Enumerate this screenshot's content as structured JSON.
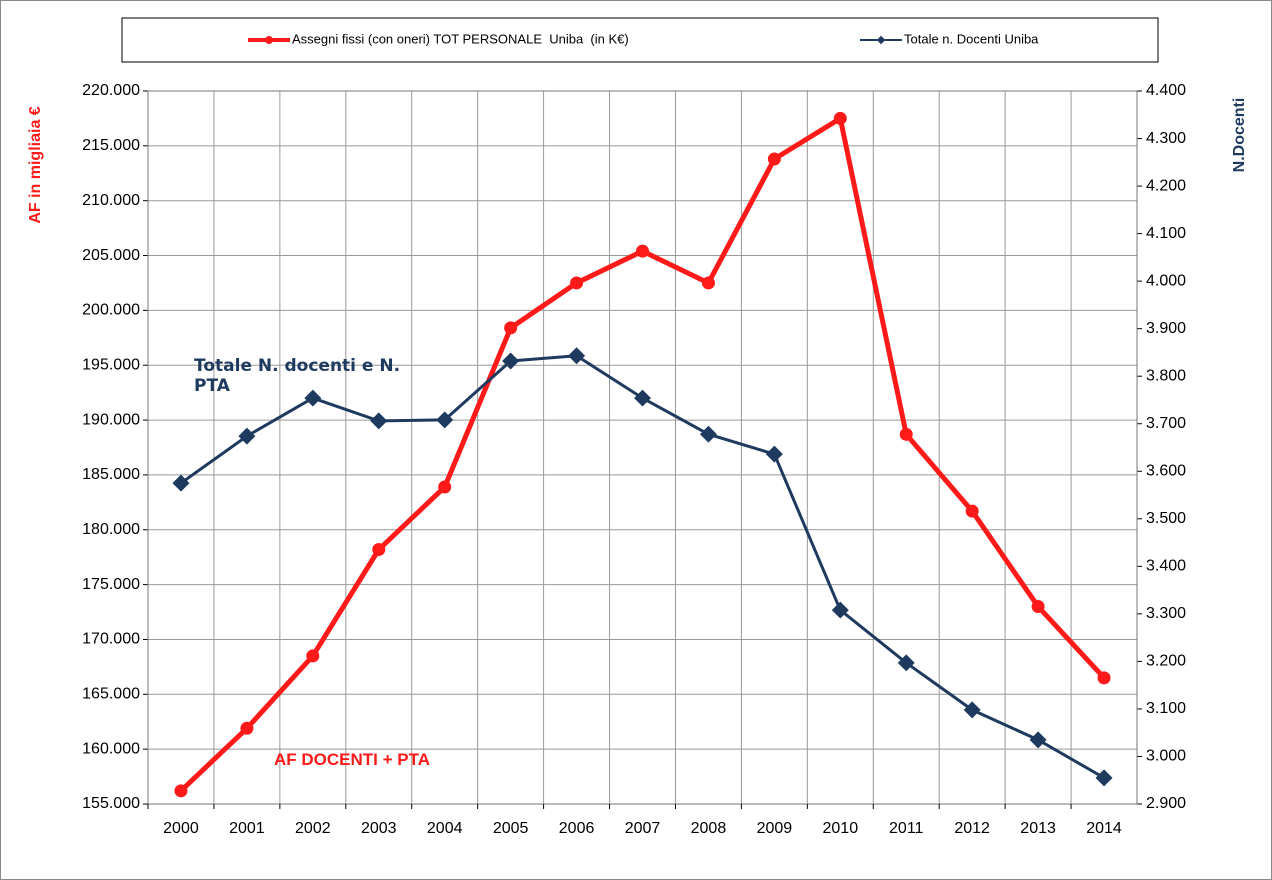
{
  "chart_data": {
    "type": "line",
    "categories": [
      "2000",
      "2001",
      "2002",
      "2003",
      "2004",
      "2005",
      "2006",
      "2007",
      "2008",
      "2009",
      "2010",
      "2011",
      "2012",
      "2013",
      "2014"
    ],
    "series": [
      {
        "name": "Assegni fissi (con oneri) TOT PERSONALE  Uniba  (in K€)",
        "color": "#ff1a1a",
        "values": [
          156200,
          161900,
          168500,
          178200,
          183900,
          198400,
          202500,
          205400,
          202500,
          213800,
          217500,
          188700,
          181700,
          173000,
          166500
        ]
      },
      {
        "name": "Totale n. Docenti Uniba",
        "color": "#1f3a5f",
        "axis": "y2",
        "values": [
          3575,
          3674,
          3754,
          3706,
          3708,
          3832,
          3843,
          3754,
          3678,
          3636,
          3308,
          3197,
          3098,
          3035,
          2955
        ]
      }
    ],
    "ylabel": "AF in migliaia €",
    "y2label": "N.Docenti",
    "ylim": [
      155000,
      220000
    ],
    "yticks": [
      {
        "value": 155000,
        "label": "155.000"
      },
      {
        "value": 160000,
        "label": "160.000"
      },
      {
        "value": 165000,
        "label": "165.000"
      },
      {
        "value": 170000,
        "label": "170.000"
      },
      {
        "value": 175000,
        "label": "175.000"
      },
      {
        "value": 180000,
        "label": "180.000"
      },
      {
        "value": 185000,
        "label": "185.000"
      },
      {
        "value": 190000,
        "label": "190.000"
      },
      {
        "value": 195000,
        "label": "195.000"
      },
      {
        "value": 200000,
        "label": "200.000"
      },
      {
        "value": 205000,
        "label": "205.000"
      },
      {
        "value": 210000,
        "label": "210.000"
      },
      {
        "value": 215000,
        "label": "215.000"
      },
      {
        "value": 220000,
        "label": "220.000"
      }
    ],
    "y2lim": [
      2900,
      4400
    ],
    "y2ticks": [
      {
        "value": 2900,
        "label": "2.900"
      },
      {
        "value": 3000,
        "label": "3.000"
      },
      {
        "value": 3100,
        "label": "3.100"
      },
      {
        "value": 3200,
        "label": "3.200"
      },
      {
        "value": 3300,
        "label": "3.300"
      },
      {
        "value": 3400,
        "label": "3.400"
      },
      {
        "value": 3500,
        "label": "3.500"
      },
      {
        "value": 3600,
        "label": "3.600"
      },
      {
        "value": 3700,
        "label": "3.700"
      },
      {
        "value": 3800,
        "label": "3.800"
      },
      {
        "value": 3900,
        "label": "3.900"
      },
      {
        "value": 4000,
        "label": "4.000"
      },
      {
        "value": 4100,
        "label": "4.100"
      },
      {
        "value": 4200,
        "label": "4.200"
      },
      {
        "value": 4300,
        "label": "4.300"
      },
      {
        "value": 4400,
        "label": "4.400"
      }
    ],
    "annotations": [
      "Totale N. docenti e N. PTA",
      "AF DOCENTI + PTA"
    ],
    "grid": true,
    "legend": "top"
  }
}
